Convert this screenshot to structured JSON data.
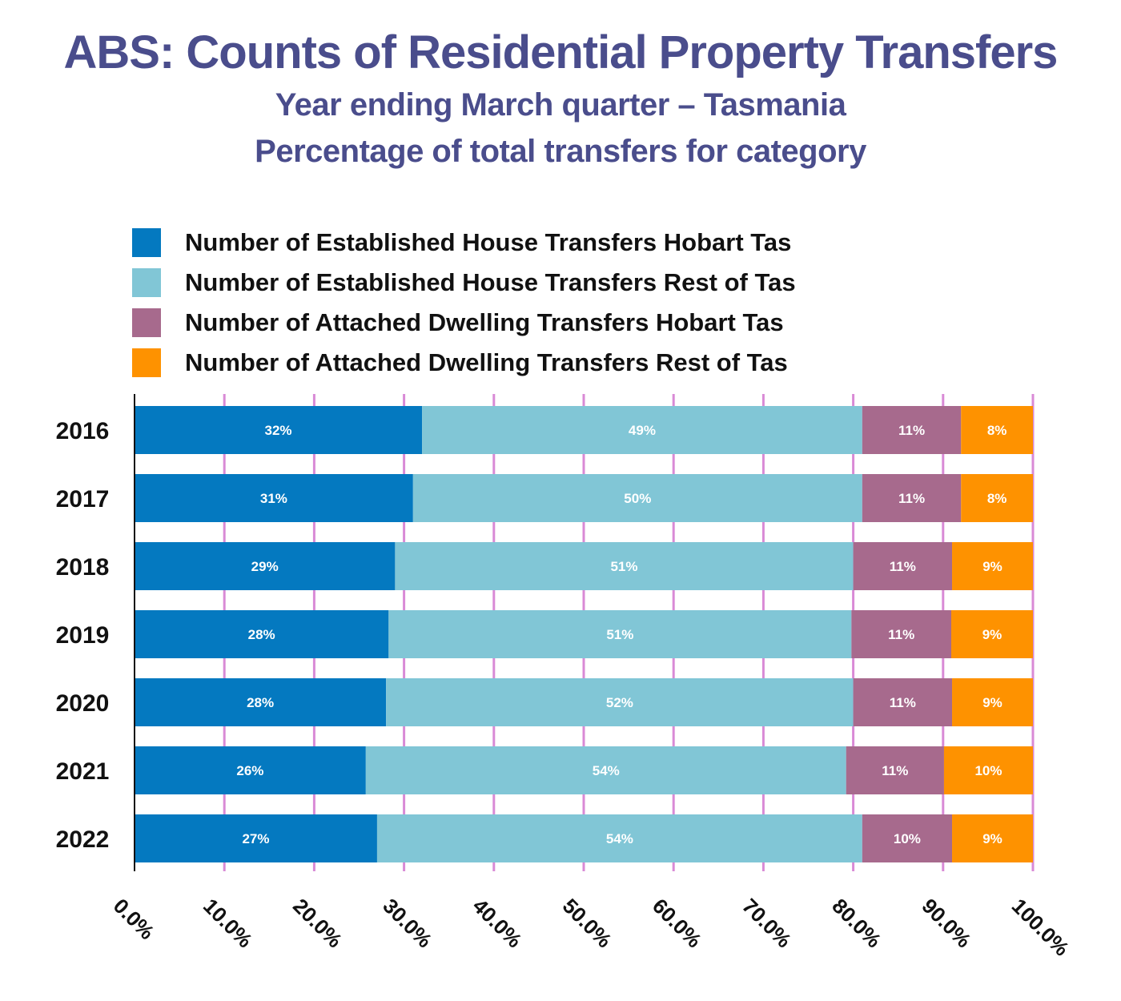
{
  "title": "ABS: Counts of Residential Property Transfers",
  "subtitle1": "Year ending March quarter – Tasmania",
  "subtitle2": "Percentage of total transfers for category",
  "chart_data": {
    "type": "bar",
    "orientation": "horizontal",
    "stacked": true,
    "title": "ABS: Counts of Residential Property Transfers",
    "xlabel": "",
    "ylabel": "",
    "xlim": [
      0,
      100
    ],
    "x_ticks": [
      "0.0%",
      "10.0%",
      "20.0%",
      "30.0%",
      "40.0%",
      "50.0%",
      "60.0%",
      "70.0%",
      "80.0%",
      "90.0%",
      "100.0%"
    ],
    "categories": [
      "2016",
      "2017",
      "2018",
      "2019",
      "2020",
      "2021",
      "2022"
    ],
    "series": [
      {
        "name": "Number of Established House Transfers Hobart Tas",
        "color": "#0479c0",
        "values": [
          32,
          31,
          29,
          28,
          28,
          26,
          27
        ],
        "labels": [
          "32%",
          "31%",
          "29%",
          "28%",
          "28%",
          "26%",
          "27%"
        ]
      },
      {
        "name": "Number of Established House Transfers Rest of Tas",
        "color": "#81c6d6",
        "values": [
          49,
          50,
          51,
          51,
          52,
          54,
          54
        ],
        "labels": [
          "49%",
          "50%",
          "51%",
          "51%",
          "52%",
          "54%",
          "54%"
        ]
      },
      {
        "name": "Number of Attached Dwelling Transfers Hobart Tas",
        "color": "#a76a8d",
        "values": [
          11,
          11,
          11,
          11,
          11,
          11,
          10
        ],
        "labels": [
          "11%",
          "11%",
          "11%",
          "11%",
          "11%",
          "11%",
          "10%"
        ]
      },
      {
        "name": "Number of Attached Dwelling Transfers Rest of Tas",
        "color": "#fe9200",
        "values": [
          8,
          8,
          9,
          9,
          9,
          10,
          9
        ],
        "labels": [
          "8%",
          "8%",
          "9%",
          "9%",
          "9%",
          "10%",
          "9%"
        ]
      }
    ],
    "grid": true,
    "grid_color": "#d98ad6",
    "legend_position": "top"
  }
}
